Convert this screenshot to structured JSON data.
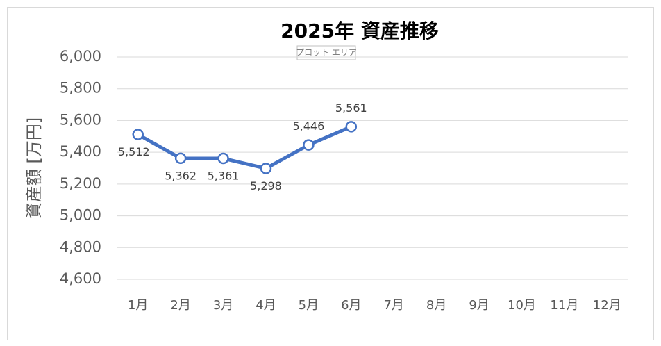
{
  "chart_data": {
    "type": "line",
    "title": "2025年 資産推移",
    "y_label": "資産額 [万円]",
    "tooltip": "プロット エリア",
    "categories": [
      "1月",
      "2月",
      "3月",
      "4月",
      "5月",
      "6月",
      "7月",
      "8月",
      "9月",
      "10月",
      "11月",
      "12月"
    ],
    "series": [
      {
        "name": "資産額",
        "color": "#4472c4",
        "values": [
          5512,
          5362,
          5361,
          5298,
          5446,
          5561,
          null,
          null,
          null,
          null,
          null,
          null
        ],
        "value_labels": [
          "5,512",
          "5,362",
          "5,361",
          "5,298",
          "5,446",
          "5,561",
          null,
          null,
          null,
          null,
          null,
          null
        ]
      }
    ],
    "ylim": [
      4600,
      6000
    ],
    "yticks": [
      {
        "value": 4600,
        "label": "4,600"
      },
      {
        "value": 4800,
        "label": "4,800"
      },
      {
        "value": 5000,
        "label": "5,000"
      },
      {
        "value": 5200,
        "label": "5,200"
      },
      {
        "value": 5400,
        "label": "5,400"
      },
      {
        "value": 5600,
        "label": "5,600"
      },
      {
        "value": 5800,
        "label": "5,800"
      },
      {
        "value": 6000,
        "label": "6,000"
      }
    ],
    "grid": true
  }
}
